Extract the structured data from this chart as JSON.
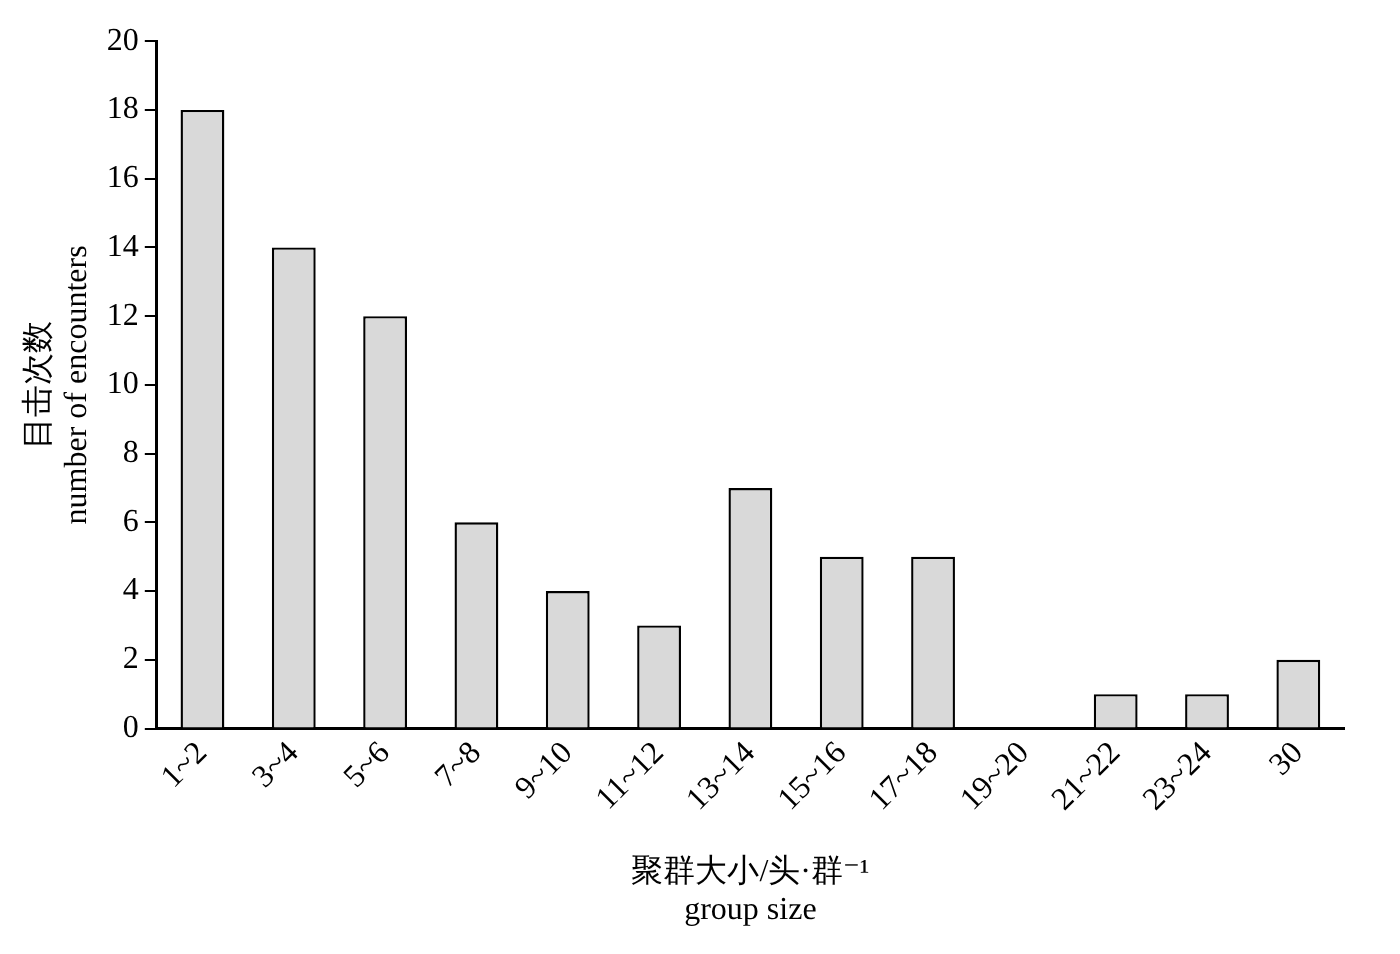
{
  "chart_data": {
    "type": "bar",
    "xlabel": "聚群大小/头·群⁻¹\ngroup size",
    "ylabel": "目击次数\nnumber of encounters",
    "categories": [
      "1~2",
      "3~4",
      "5~6",
      "7~8",
      "9~10",
      "11~12",
      "13~14",
      "15~16",
      "17~18",
      "19~20",
      "21~22",
      "23~24",
      "30"
    ],
    "values": [
      18,
      14,
      12,
      6,
      4,
      3,
      7,
      5,
      5,
      0,
      1,
      1,
      2
    ],
    "color": "#d9d9d9",
    "ylim": [
      0,
      20
    ],
    "yticks": [
      0,
      2,
      4,
      6,
      8,
      10,
      12,
      14,
      16,
      18,
      20
    ]
  }
}
